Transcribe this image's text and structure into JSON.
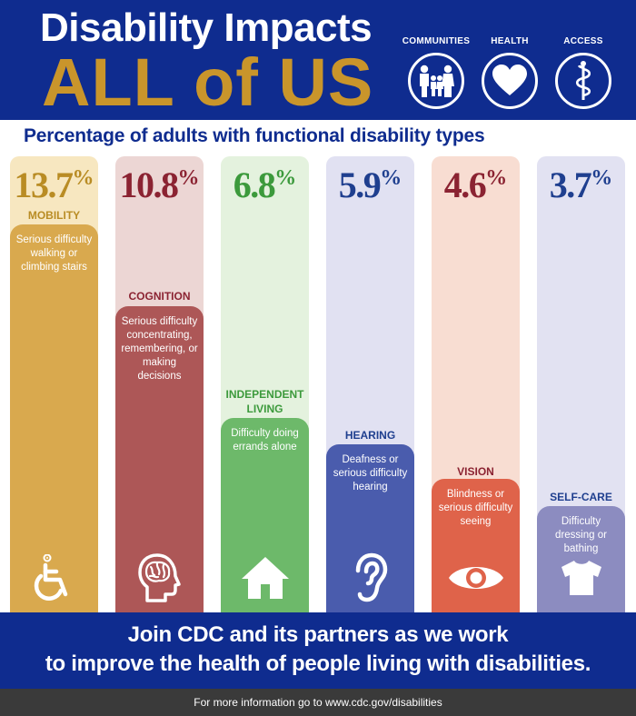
{
  "header": {
    "title_line1": "Disability Impacts",
    "title_line2": "ALL of US",
    "icons": [
      {
        "label": "COMMUNITIES",
        "icon": "family-icon"
      },
      {
        "label": "HEALTH",
        "icon": "heart-icon"
      },
      {
        "label": "ACCESS",
        "icon": "medical-caduceus-icon"
      }
    ]
  },
  "subtitle": "Percentage of adults with functional disability types",
  "chart_data": {
    "type": "bar",
    "unit": "%",
    "ylim": [
      0,
      15
    ],
    "grid": false,
    "categories": [
      "MOBILITY",
      "COGNITION",
      "INDEPENDENT LIVING",
      "HEARING",
      "VISION",
      "SELF-CARE"
    ],
    "values": [
      13.7,
      10.8,
      6.8,
      5.9,
      4.6,
      3.7
    ],
    "value_labels": [
      "13.7",
      "10.8",
      "6.8",
      "5.9",
      "4.6",
      "3.7"
    ],
    "descriptions": [
      "Serious difficulty walking or climbing stairs",
      "Serious difficulty concentrating, remembering, or making decisions",
      "Difficulty doing errands alone",
      "Deafness or serious difficulty hearing",
      "Blindness or serious difficulty seeing",
      "Difficulty dressing or bathing"
    ],
    "icons": [
      "wheelchair-icon",
      "brain-head-icon",
      "house-icon",
      "ear-icon",
      "eye-icon",
      "shirt-icon"
    ],
    "colors": [
      "#d9a94e",
      "#ad5757",
      "#6db96a",
      "#4a5cad",
      "#df634a",
      "#8c8cc0"
    ],
    "bg_colors": [
      "#f7e7c0",
      "#ecd6d4",
      "#e4f2de",
      "#e1e1f2",
      "#f8ddd2",
      "#e2e2f2"
    ],
    "label_colors": [
      "#b98c24",
      "#8b2332",
      "#3c9a3c",
      "#1f3f8f",
      "#8b2332",
      "#1f3f8f"
    ]
  },
  "footer": {
    "line1": "Join CDC and its partners as we work",
    "line2": "to improve the health of people living with disabilities.",
    "info": "For more information go to www.cdc.gov/disabilities"
  }
}
